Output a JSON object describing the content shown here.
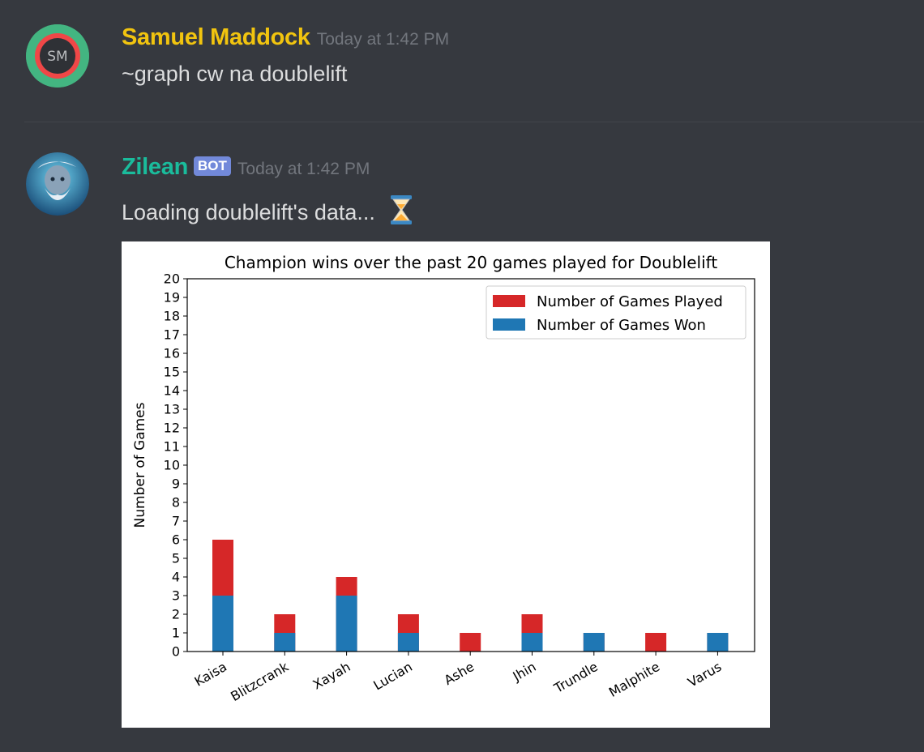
{
  "messages": [
    {
      "author": "Samuel Maddock",
      "author_color": "#f1c40f",
      "avatar_initials": "SM",
      "timestamp": "Today at 1:42 PM",
      "text": "~graph cw na doublelift"
    },
    {
      "author": "Zilean",
      "author_color": "#1abc9c",
      "bot_tag": "BOT",
      "avatar_icon": "zilean-avatar-icon",
      "timestamp": "Today at 1:42 PM",
      "text": "Loading doublelift's data...",
      "emoji": "⏳"
    }
  ],
  "chart_data": {
    "type": "bar",
    "stacked_overlay": true,
    "title": "Champion wins over the past 20 games played for Doublelift",
    "xlabel": "",
    "ylabel": "Number of Games",
    "categories": [
      "Kaisa",
      "Blitzcrank",
      "Xayah",
      "Lucian",
      "Ashe",
      "Jhin",
      "Trundle",
      "Malphite",
      "Varus"
    ],
    "series": [
      {
        "name": "Number of Games Played",
        "color": "#d62728",
        "values": [
          6,
          2,
          4,
          2,
          1,
          2,
          1,
          1,
          1
        ]
      },
      {
        "name": "Number of Games Won",
        "color": "#1f77b4",
        "values": [
          3,
          1,
          3,
          1,
          0,
          1,
          1,
          0,
          1
        ]
      }
    ],
    "ylim": [
      0,
      20
    ],
    "yticks": [
      0,
      1,
      2,
      3,
      4,
      5,
      6,
      7,
      8,
      9,
      10,
      11,
      12,
      13,
      14,
      15,
      16,
      17,
      18,
      19,
      20
    ],
    "legend": "top-right",
    "grid": false
  }
}
